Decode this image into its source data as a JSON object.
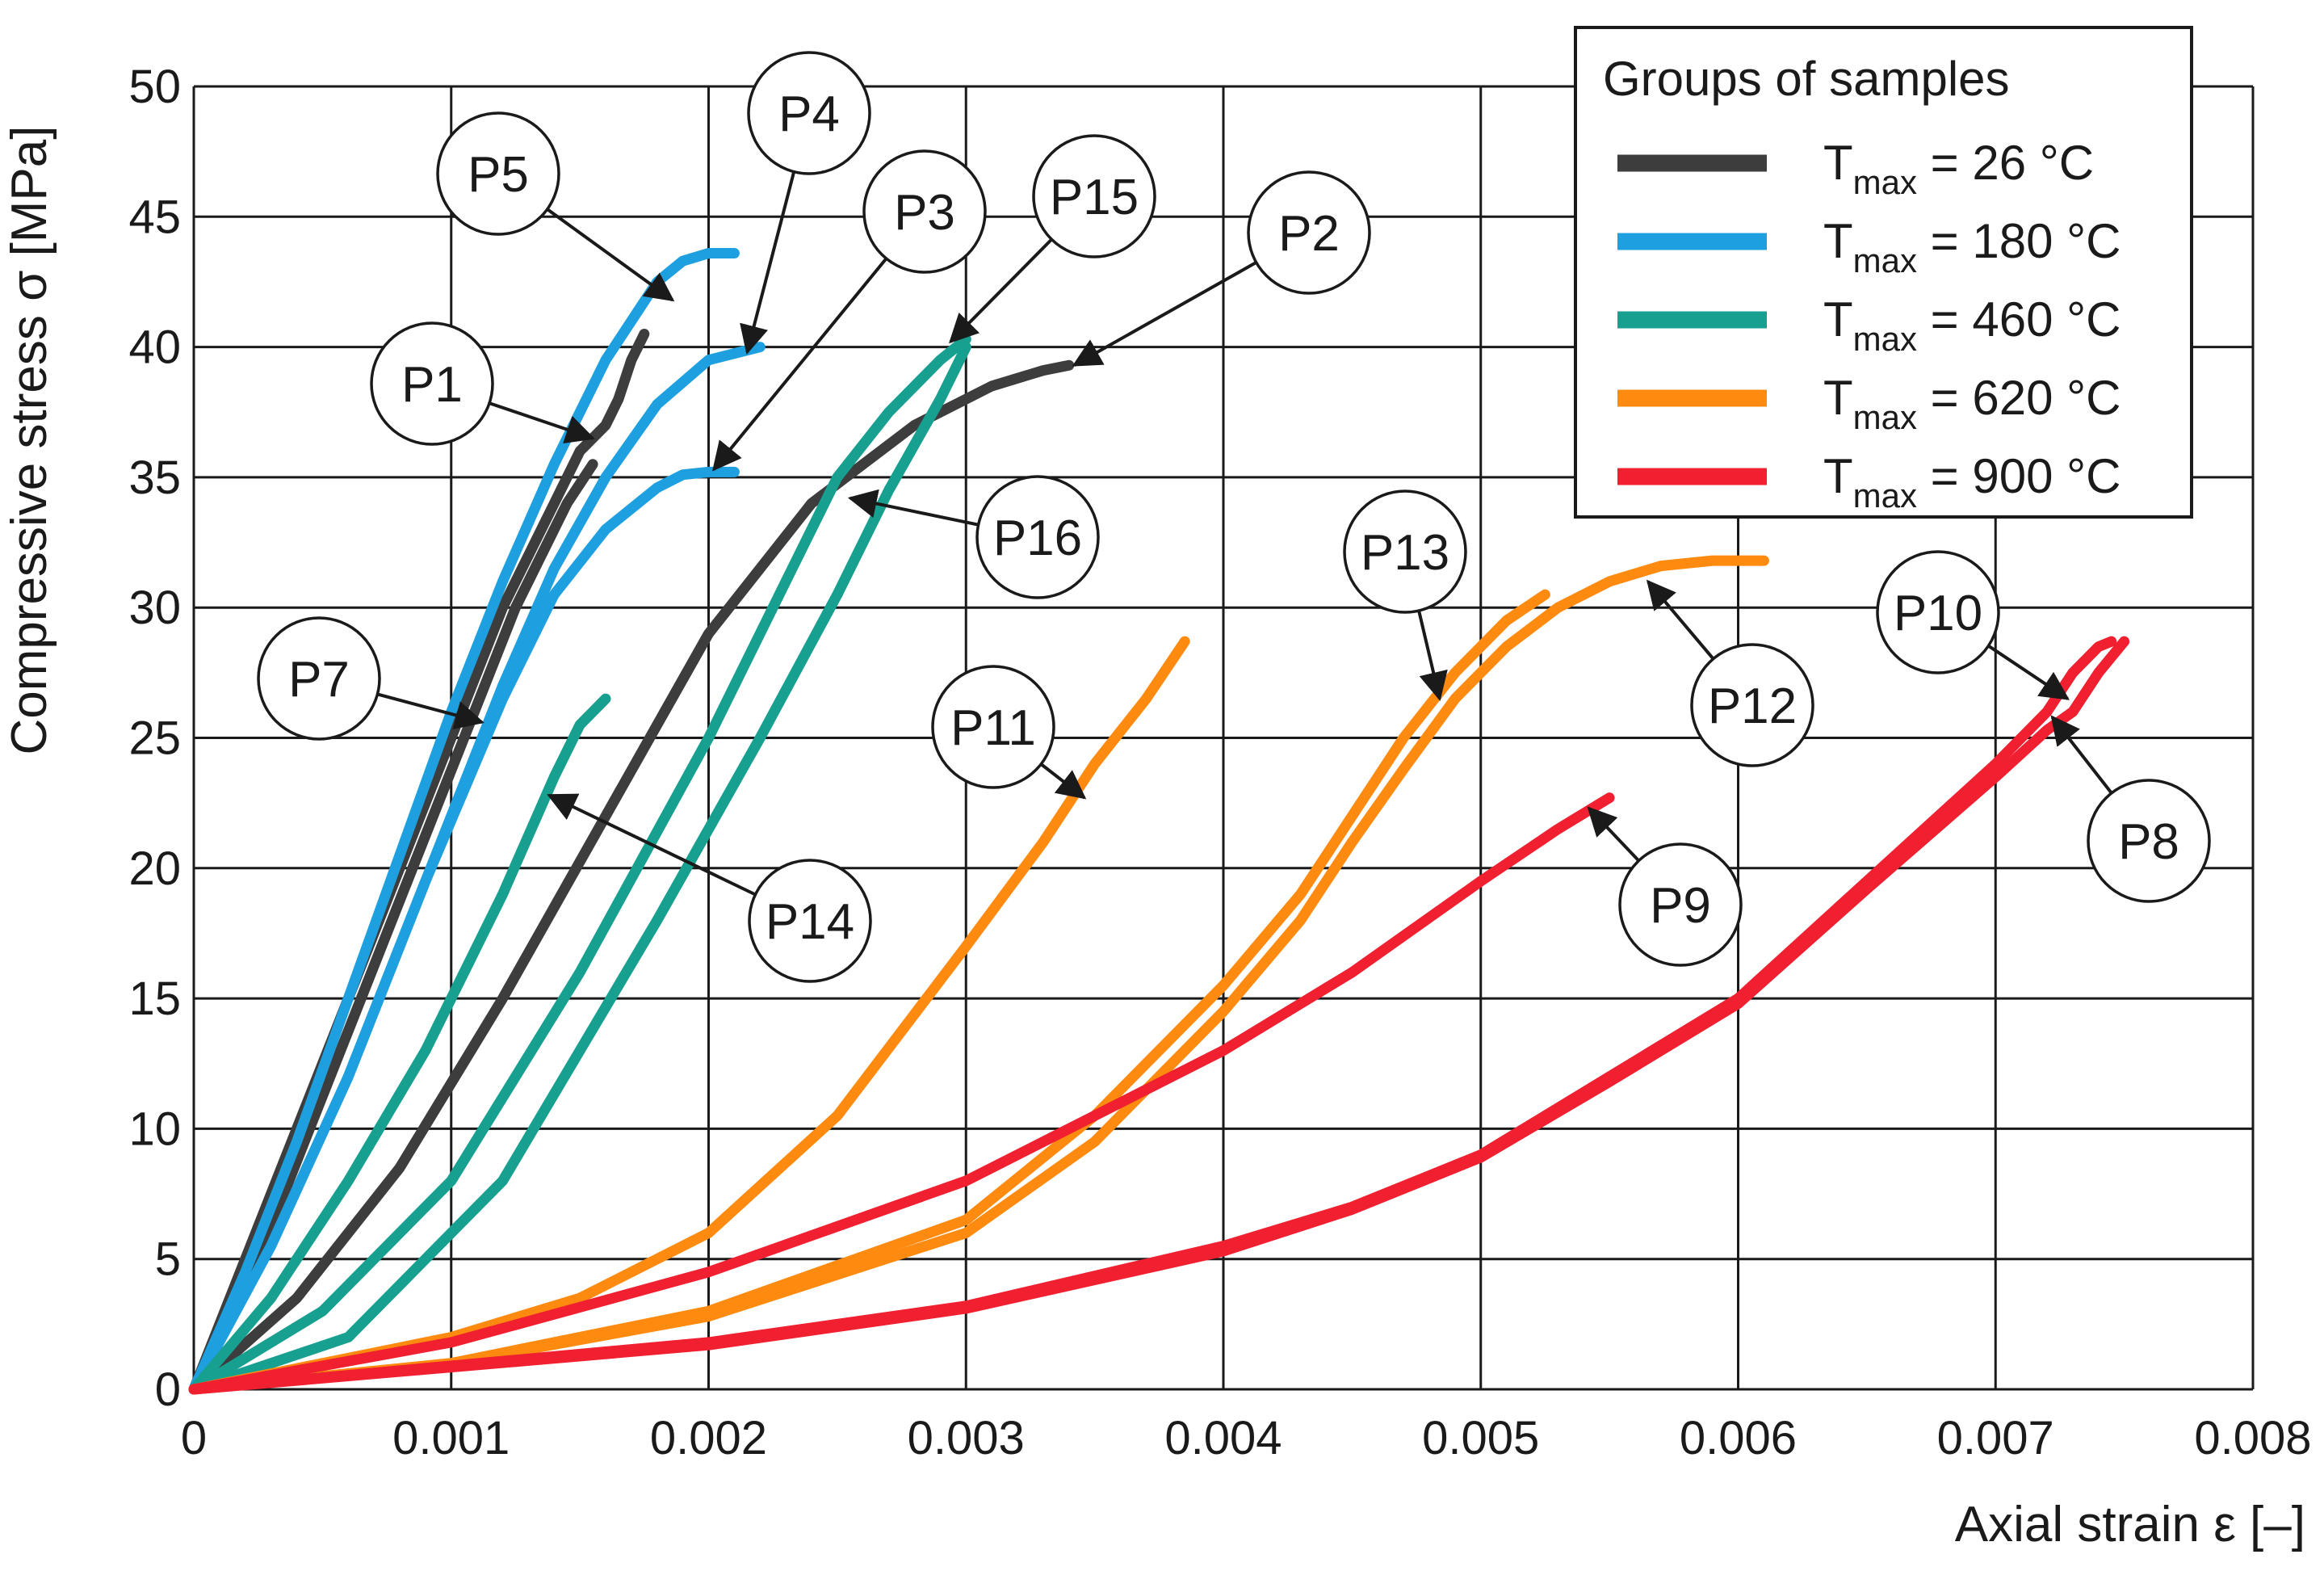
{
  "chart_data": {
    "type": "line",
    "title": "",
    "xlabel": "Axial strain ε [–]",
    "ylabel": "Compressive stress σ [MPa]",
    "xlim": [
      0,
      0.008
    ],
    "ylim": [
      0,
      50
    ],
    "x_ticks": [
      0,
      0.001,
      0.002,
      0.003,
      0.004,
      0.005,
      0.006,
      0.007,
      0.008
    ],
    "x_tick_labels": [
      "0",
      "0.001",
      "0.002",
      "0.003",
      "0.004",
      "0.005",
      "0.006",
      "0.007",
      "0.008"
    ],
    "y_ticks": [
      0,
      5,
      10,
      15,
      20,
      25,
      30,
      35,
      40,
      45,
      50
    ],
    "y_tick_labels": [
      "0",
      "5",
      "10",
      "15",
      "20",
      "25",
      "30",
      "35",
      "40",
      "45",
      "50"
    ],
    "grid": true,
    "legend": {
      "title": "Groups of samples",
      "placement": "top-right",
      "entries": [
        {
          "group": "g26",
          "prefix": "T",
          "sub": "max",
          "suffix": " = 26 °C",
          "color": "#3d3d3d"
        },
        {
          "group": "g180",
          "prefix": "T",
          "sub": "max",
          "suffix": " = 180 °C",
          "color": "#1ea0e0"
        },
        {
          "group": "g460",
          "prefix": "T",
          "sub": "max",
          "suffix": " = 460 °C",
          "color": "#17a090"
        },
        {
          "group": "g620",
          "prefix": "T",
          "sub": "max",
          "suffix": " = 620 °C",
          "color": "#ff8a10"
        },
        {
          "group": "g900",
          "prefix": "T",
          "sub": "max",
          "suffix": " = 900 °C",
          "color": "#f02030"
        }
      ]
    },
    "series": [
      {
        "name": "P1",
        "group": "g26",
        "points": [
          [
            0,
            0
          ],
          [
            0.0002,
            5
          ],
          [
            0.0004,
            10
          ],
          [
            0.0006,
            15
          ],
          [
            0.0008,
            20
          ],
          [
            0.001,
            25
          ],
          [
            0.0012,
            30
          ],
          [
            0.0014,
            34
          ],
          [
            0.0015,
            36
          ],
          [
            0.0016,
            37
          ],
          [
            0.00165,
            38
          ],
          [
            0.0017,
            39.5
          ],
          [
            0.00175,
            40.5
          ]
        ]
      },
      {
        "name": "P7",
        "group": "g26",
        "points": [
          [
            0,
            0
          ],
          [
            0.00025,
            5
          ],
          [
            0.00045,
            10
          ],
          [
            0.00065,
            15
          ],
          [
            0.00085,
            20
          ],
          [
            0.00105,
            25
          ],
          [
            0.00125,
            30
          ],
          [
            0.00145,
            34
          ],
          [
            0.00155,
            35.5
          ]
        ]
      },
      {
        "name": "P2",
        "group": "g26",
        "points": [
          [
            0,
            0
          ],
          [
            0.0004,
            3.5
          ],
          [
            0.0008,
            8.5
          ],
          [
            0.0012,
            15
          ],
          [
            0.0016,
            22
          ],
          [
            0.002,
            29
          ],
          [
            0.0024,
            34
          ],
          [
            0.0028,
            37
          ],
          [
            0.0031,
            38.5
          ],
          [
            0.0033,
            39.1
          ],
          [
            0.0034,
            39.3
          ]
        ]
      },
      {
        "name": "P5",
        "group": "g180",
        "points": [
          [
            0,
            0
          ],
          [
            0.0002,
            4.5
          ],
          [
            0.0004,
            9.5
          ],
          [
            0.0006,
            15
          ],
          [
            0.0008,
            20.5
          ],
          [
            0.001,
            26
          ],
          [
            0.0012,
            31
          ],
          [
            0.0014,
            35.5
          ],
          [
            0.0016,
            39.5
          ],
          [
            0.0018,
            42.5
          ],
          [
            0.0019,
            43.3
          ],
          [
            0.002,
            43.6
          ],
          [
            0.0021,
            43.6
          ]
        ]
      },
      {
        "name": "P4",
        "group": "g180",
        "points": [
          [
            0,
            0
          ],
          [
            0.0003,
            5.5
          ],
          [
            0.0006,
            12
          ],
          [
            0.0009,
            19.5
          ],
          [
            0.0012,
            27
          ],
          [
            0.0014,
            31.5
          ],
          [
            0.0016,
            35
          ],
          [
            0.0018,
            37.8
          ],
          [
            0.002,
            39.5
          ],
          [
            0.0022,
            40
          ]
        ]
      },
      {
        "name": "P3",
        "group": "g180",
        "points": [
          [
            0,
            0
          ],
          [
            0.0003,
            5.5
          ],
          [
            0.0006,
            12
          ],
          [
            0.0009,
            19.5
          ],
          [
            0.0012,
            26.5
          ],
          [
            0.0014,
            30.5
          ],
          [
            0.0016,
            33
          ],
          [
            0.0018,
            34.6
          ],
          [
            0.0019,
            35.1
          ],
          [
            0.002,
            35.2
          ],
          [
            0.0021,
            35.2
          ]
        ]
      },
      {
        "name": "P14",
        "group": "g460",
        "points": [
          [
            0,
            0
          ],
          [
            0.0003,
            3.5
          ],
          [
            0.0006,
            8
          ],
          [
            0.0009,
            13
          ],
          [
            0.0012,
            19
          ],
          [
            0.0014,
            23.5
          ],
          [
            0.0015,
            25.5
          ],
          [
            0.0016,
            26.5
          ]
        ]
      },
      {
        "name": "P16",
        "group": "g460",
        "points": [
          [
            0,
            0
          ],
          [
            0.0005,
            3
          ],
          [
            0.001,
            8
          ],
          [
            0.0015,
            16
          ],
          [
            0.002,
            25
          ],
          [
            0.0023,
            31
          ],
          [
            0.0025,
            35
          ],
          [
            0.0027,
            37.5
          ],
          [
            0.0029,
            39.5
          ],
          [
            0.003,
            40.3
          ]
        ]
      },
      {
        "name": "P15",
        "group": "g460",
        "points": [
          [
            0,
            0
          ],
          [
            0.0006,
            2
          ],
          [
            0.0012,
            8
          ],
          [
            0.0018,
            18
          ],
          [
            0.0022,
            25
          ],
          [
            0.0025,
            30.5
          ],
          [
            0.0027,
            34.5
          ],
          [
            0.0029,
            38
          ],
          [
            0.003,
            40
          ]
        ]
      },
      {
        "name": "P11",
        "group": "g620",
        "points": [
          [
            0,
            0
          ],
          [
            0.001,
            2
          ],
          [
            0.0015,
            3.5
          ],
          [
            0.002,
            6
          ],
          [
            0.0025,
            10.5
          ],
          [
            0.003,
            17
          ],
          [
            0.0033,
            21
          ],
          [
            0.0035,
            24
          ],
          [
            0.0037,
            26.5
          ],
          [
            0.00385,
            28.7
          ]
        ]
      },
      {
        "name": "P13",
        "group": "g620",
        "points": [
          [
            0,
            0
          ],
          [
            0.001,
            1
          ],
          [
            0.002,
            3
          ],
          [
            0.003,
            6.5
          ],
          [
            0.0035,
            10.5
          ],
          [
            0.004,
            15.5
          ],
          [
            0.0043,
            19
          ],
          [
            0.0045,
            22
          ],
          [
            0.0047,
            25
          ],
          [
            0.0049,
            27.5
          ],
          [
            0.0051,
            29.5
          ],
          [
            0.00525,
            30.5
          ]
        ]
      },
      {
        "name": "P12",
        "group": "g620",
        "points": [
          [
            0,
            0
          ],
          [
            0.001,
            1
          ],
          [
            0.002,
            2.8
          ],
          [
            0.003,
            6
          ],
          [
            0.0035,
            9.5
          ],
          [
            0.004,
            14.5
          ],
          [
            0.0043,
            18
          ],
          [
            0.0045,
            21
          ],
          [
            0.0047,
            23.8
          ],
          [
            0.0049,
            26.5
          ],
          [
            0.0051,
            28.5
          ],
          [
            0.0053,
            30
          ],
          [
            0.0055,
            31
          ],
          [
            0.0057,
            31.6
          ],
          [
            0.0059,
            31.8
          ],
          [
            0.0061,
            31.8
          ]
        ]
      },
      {
        "name": "P9",
        "group": "g900",
        "points": [
          [
            0,
            0
          ],
          [
            0.001,
            1.8
          ],
          [
            0.002,
            4.5
          ],
          [
            0.003,
            8
          ],
          [
            0.0035,
            10.5
          ],
          [
            0.004,
            13
          ],
          [
            0.0045,
            16
          ],
          [
            0.005,
            19.5
          ],
          [
            0.0053,
            21.5
          ],
          [
            0.0055,
            22.7
          ]
        ]
      },
      {
        "name": "P10",
        "group": "g900",
        "points": [
          [
            0,
            0
          ],
          [
            0.002,
            1.8
          ],
          [
            0.003,
            3.2
          ],
          [
            0.004,
            5.5
          ],
          [
            0.0045,
            7
          ],
          [
            0.005,
            9
          ],
          [
            0.0055,
            12
          ],
          [
            0.006,
            15
          ],
          [
            0.0065,
            19.5
          ],
          [
            0.007,
            24
          ],
          [
            0.0072,
            26
          ],
          [
            0.0073,
            27.5
          ],
          [
            0.0074,
            28.5
          ],
          [
            0.00745,
            28.7
          ]
        ]
      },
      {
        "name": "P8",
        "group": "g900",
        "points": [
          [
            0,
            0
          ],
          [
            0.002,
            1.7
          ],
          [
            0.003,
            3.1
          ],
          [
            0.004,
            5.3
          ],
          [
            0.0045,
            6.9
          ],
          [
            0.005,
            8.9
          ],
          [
            0.0055,
            11.8
          ],
          [
            0.006,
            14.8
          ],
          [
            0.0065,
            19.2
          ],
          [
            0.007,
            23.5
          ],
          [
            0.0072,
            25.3
          ],
          [
            0.0073,
            26
          ],
          [
            0.0074,
            27.5
          ],
          [
            0.0075,
            28.7
          ]
        ]
      }
    ],
    "callouts": [
      {
        "id": "P5",
        "label": "P5",
        "target": [
          0.00186,
          41.8
        ]
      },
      {
        "id": "P4",
        "label": "P4",
        "target": [
          0.00215,
          39.8
        ]
      },
      {
        "id": "P3",
        "label": "P3",
        "target": [
          0.00202,
          35.3
        ]
      },
      {
        "id": "P15",
        "label": "P15",
        "target": [
          0.00294,
          40.2
        ]
      },
      {
        "id": "P2",
        "label": "P2",
        "target": [
          0.00342,
          39.3
        ]
      },
      {
        "id": "P1",
        "label": "P1",
        "target": [
          0.00155,
          36.5
        ]
      },
      {
        "id": "P16",
        "label": "P16",
        "target": [
          0.00255,
          34.2
        ]
      },
      {
        "id": "P7",
        "label": "P7",
        "target": [
          0.00112,
          25.6
        ]
      },
      {
        "id": "P14",
        "label": "P14",
        "target": [
          0.00138,
          22.8
        ]
      },
      {
        "id": "P11",
        "label": "P11",
        "target": [
          0.00346,
          22.7
        ]
      },
      {
        "id": "P13",
        "label": "P13",
        "target": [
          0.00484,
          26.5
        ]
      },
      {
        "id": "P12",
        "label": "P12",
        "target": [
          0.00565,
          31.0
        ]
      },
      {
        "id": "P10",
        "label": "P10",
        "target": [
          0.00728,
          26.5
        ]
      },
      {
        "id": "P8",
        "label": "P8",
        "target": [
          0.00722,
          25.8
        ]
      },
      {
        "id": "P9",
        "label": "P9",
        "target": [
          0.00542,
          22.3
        ]
      }
    ]
  }
}
